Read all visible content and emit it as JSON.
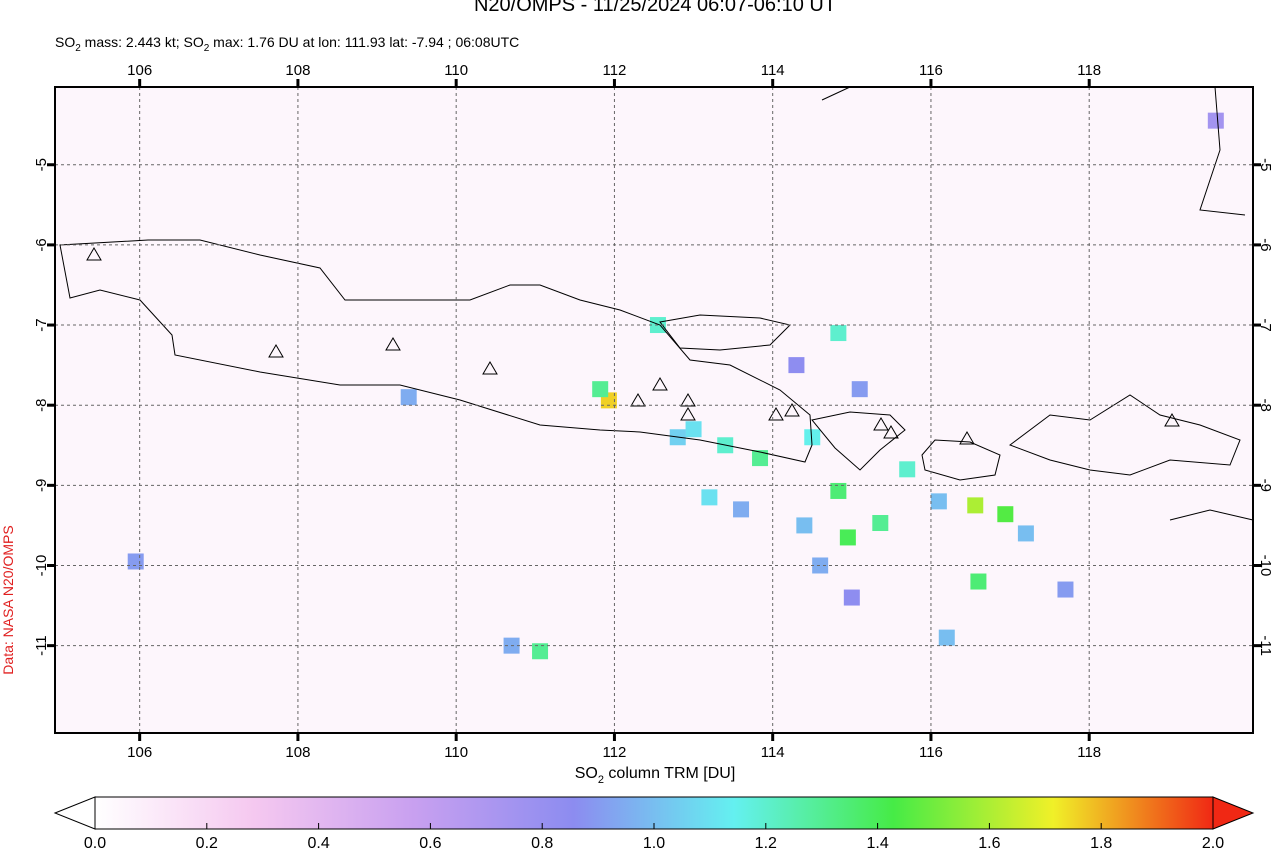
{
  "title": "N20/OMPS - 11/25/2024 06:07-06:10 UT",
  "subtitle": [
    "SO",
    "2",
    " mass: 2.443 kt; SO",
    "2",
    " max: 1.76 DU at lon: 111.93 lat: -7.94 ; 06:08UTC"
  ],
  "credit": "Data: NASA N20/OMPS",
  "map": {
    "xlim": [
      104.93,
      120.07
    ],
    "ylim": [
      -12.09,
      -4.03
    ],
    "xticks": [
      106,
      108,
      110,
      112,
      114,
      116,
      118
    ],
    "yticks": [
      -5,
      -6,
      -7,
      -8,
      -9,
      -10,
      -11
    ],
    "grid": true,
    "pixels": [
      {
        "lon": 111.93,
        "lat": -7.94,
        "value": 1.76
      },
      {
        "lon": 111.82,
        "lat": -7.8,
        "value": 1.3
      },
      {
        "lon": 111.06,
        "lat": -11.07,
        "value": 1.3
      },
      {
        "lon": 110.7,
        "lat": -11.0,
        "value": 0.95
      },
      {
        "lon": 114.83,
        "lat": -9.07,
        "value": 1.35
      },
      {
        "lon": 116.56,
        "lat": -9.25,
        "value": 1.6
      },
      {
        "lon": 116.94,
        "lat": -9.36,
        "value": 1.45
      },
      {
        "lon": 114.95,
        "lat": -9.65,
        "value": 1.4
      },
      {
        "lon": 115.36,
        "lat": -9.47,
        "value": 1.3
      },
      {
        "lon": 116.6,
        "lat": -10.2,
        "value": 1.35
      },
      {
        "lon": 113.84,
        "lat": -8.66,
        "value": 1.3
      },
      {
        "lon": 113.4,
        "lat": -8.5,
        "value": 1.2
      },
      {
        "lon": 114.83,
        "lat": -7.1,
        "value": 1.2
      },
      {
        "lon": 112.55,
        "lat": -7.0,
        "value": 1.2
      },
      {
        "lon": 113.0,
        "lat": -8.3,
        "value": 1.1
      },
      {
        "lon": 112.8,
        "lat": -8.4,
        "value": 1.05
      },
      {
        "lon": 113.2,
        "lat": -9.15,
        "value": 1.1
      },
      {
        "lon": 113.6,
        "lat": -9.3,
        "value": 0.95
      },
      {
        "lon": 114.4,
        "lat": -9.5,
        "value": 1.0
      },
      {
        "lon": 114.6,
        "lat": -10.0,
        "value": 0.95
      },
      {
        "lon": 115.0,
        "lat": -10.4,
        "value": 0.85
      },
      {
        "lon": 115.7,
        "lat": -8.8,
        "value": 1.2
      },
      {
        "lon": 116.1,
        "lat": -9.2,
        "value": 1.0
      },
      {
        "lon": 117.2,
        "lat": -9.6,
        "value": 1.0
      },
      {
        "lon": 117.7,
        "lat": -10.3,
        "value": 0.9
      },
      {
        "lon": 116.2,
        "lat": -10.9,
        "value": 1.0
      },
      {
        "lon": 114.3,
        "lat": -7.5,
        "value": 0.85
      },
      {
        "lon": 115.1,
        "lat": -7.8,
        "value": 0.9
      },
      {
        "lon": 109.4,
        "lat": -7.9,
        "value": 0.95
      },
      {
        "lon": 105.95,
        "lat": -9.95,
        "value": 0.9
      },
      {
        "lon": 119.6,
        "lat": -4.45,
        "value": 0.75
      },
      {
        "lon": 114.5,
        "lat": -8.4,
        "value": 1.15
      }
    ]
  },
  "colorbar": {
    "label": [
      "SO",
      "2",
      " column TRM [DU]"
    ],
    "lim": [
      0,
      2
    ],
    "colormap": [
      "#ffffff",
      "#f5c8f0",
      "#c8a0f0",
      "#8c8cf0",
      "#64f0f0",
      "#46eb46",
      "#f0f028",
      "#f02814"
    ],
    "ticks": [
      {
        "value": 0,
        "label": "0.0"
      },
      {
        "value": 0.2,
        "label": "0.2"
      },
      {
        "value": 0.4,
        "label": "0.4"
      },
      {
        "value": 0.6,
        "label": "0.6"
      },
      {
        "value": 0.8,
        "label": "0.8"
      },
      {
        "value": 1,
        "label": "1.0"
      },
      {
        "value": 1.2,
        "label": "1.2"
      },
      {
        "value": 1.4,
        "label": "1.4"
      },
      {
        "value": 1.6,
        "label": "1.6"
      },
      {
        "value": 1.8,
        "label": "1.8"
      },
      {
        "value": 2,
        "label": "2.0"
      }
    ]
  }
}
